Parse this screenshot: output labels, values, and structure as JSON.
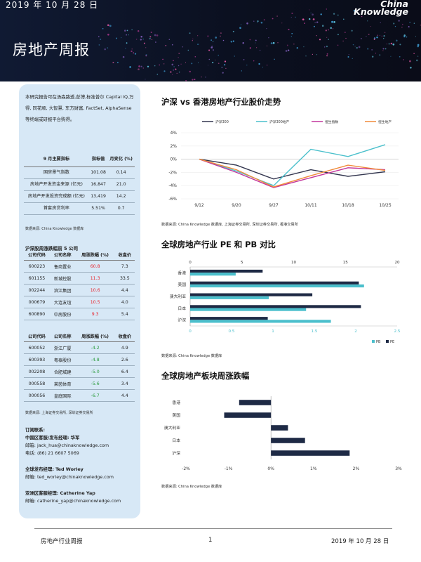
{
  "header": {
    "date": "2019 年 10 月 28 日",
    "logo_line1": "China",
    "logo_line2": "Knowledge",
    "title": "房地产周报"
  },
  "sidebar": {
    "intro": "本研究报告可在汤森路透,彭博,标准普尔 Capital IQ,万得, 同花顺, 大智慧, 东方财富, FactSet, AlphaSense 等终端或研报平台购得。",
    "indicators": {
      "headers": [
        "9 月主要指标",
        "指标值",
        "月变化 (%)"
      ],
      "rows": [
        {
          "name": "国房景气指数",
          "value": "101.08",
          "change": "0.14"
        },
        {
          "name": "房地产开发资金来源 (亿元)",
          "value": "16,847",
          "change": "21.0"
        },
        {
          "name": "房地产开发投资完成额 (亿元)",
          "value": "13,419",
          "change": "14.2"
        },
        {
          "name": "首套房贷利率",
          "value": "5.51%",
          "change": "0.7"
        }
      ],
      "source": "数据来源: China Knowledge 数据库"
    },
    "stocks_title": "沪深股周涨跌幅前 5 公司",
    "stock_headers": [
      "公司代码",
      "公司名称",
      "周涨跌幅 (%)",
      "收盘价"
    ],
    "gainers": [
      {
        "code": "600223",
        "name": "鲁商置业",
        "change": "60.8",
        "close": "7.3"
      },
      {
        "code": "601155",
        "name": "新城控股",
        "change": "11.3",
        "close": "33.5"
      },
      {
        "code": "002244",
        "name": "滨江集团",
        "change": "10.6",
        "close": "4.4"
      },
      {
        "code": "000679",
        "name": "大连友谊",
        "change": "10.5",
        "close": "4.0"
      },
      {
        "code": "600890",
        "name": "中房股份",
        "change": "9.3",
        "close": "5.4"
      }
    ],
    "losers": [
      {
        "code": "600052",
        "name": "浙江广厦",
        "change": "-4.2",
        "close": "4.9"
      },
      {
        "code": "600393",
        "name": "粤泰股份",
        "change": "-4.8",
        "close": "2.6"
      },
      {
        "code": "002208",
        "name": "合肥城建",
        "change": "-5.0",
        "close": "6.4"
      },
      {
        "code": "000558",
        "name": "莱茵体育",
        "change": "-5.6",
        "close": "3.4"
      },
      {
        "code": "000056",
        "name": "皇庭国际",
        "change": "-6.7",
        "close": "4.4"
      }
    ],
    "stocks_source": "数据来源: 上海证券交易所, 深圳证券交易所",
    "contacts": {
      "heading": "订阅联系:",
      "cn_title": "中国区客服/发布经理: 华军",
      "cn_email": "邮箱: jack_hua@chinaknowledge.com",
      "cn_phone": "电话: (86) 21 6607 5069",
      "global_title": "全球发布经理: Ted Worley",
      "global_email": "邮箱: ted_worley@chinaknowledge.com",
      "asia_title": "亚洲区客服经理: Catherine Yap",
      "asia_email": "邮箱: catherine_yap@chinaknowledge.com"
    }
  },
  "sections": {
    "chart1_title": "沪深 vs 香港房地产行业股价走势",
    "chart1_source": "数据来源: China Knowledge 数据库, 上海证券交易所, 深圳证券交易所, 香港交易所",
    "chart2_title": "全球房地产行业 PE 和 PB 对比",
    "chart2_source": "数据来源: China Knowledge 数据库",
    "chart3_title": "全球房地产板块周涨跌幅",
    "chart3_source": "数据来源: China Knowledge 数据库"
  },
  "footer": {
    "left": "房地产行业周报",
    "page": "1",
    "date": "2019 年 10 月 28 日"
  },
  "chart_data": [
    {
      "type": "line",
      "x": [
        "9/12",
        "9/20",
        "9/27",
        "10/11",
        "10/18",
        "10/25"
      ],
      "yticks": [
        "4%",
        "2%",
        "0%",
        "-2%",
        "-4%",
        "-6%"
      ],
      "ylim": [
        -6,
        4
      ],
      "series": [
        {
          "name": "沪深300",
          "color": "#33364f",
          "values": [
            0,
            -0.9,
            -3.0,
            -1.6,
            -2.6,
            -1.9
          ]
        },
        {
          "name": "沪深300地产",
          "color": "#4bc0cc",
          "values": [
            0,
            -1.8,
            -4.0,
            1.5,
            0.4,
            2.2
          ]
        },
        {
          "name": "恒生指数",
          "color": "#c2359c",
          "values": [
            0,
            -2.0,
            -4.3,
            -2.8,
            -1.3,
            -1.6
          ]
        },
        {
          "name": "恒生地产",
          "color": "#f08a3a",
          "values": [
            0,
            -1.6,
            -4.2,
            -2.5,
            -0.9,
            -1.7
          ]
        }
      ]
    },
    {
      "type": "bar",
      "orientation": "horizontal",
      "categories": [
        "香港",
        "美国",
        "澳大利亚",
        "日本",
        "沪深"
      ],
      "top_axis_ticks": [
        "0",
        "5",
        "10",
        "15",
        "20"
      ],
      "bottom_axis_ticks": [
        "0",
        "0.5",
        "1",
        "1.5",
        "2",
        "2.5"
      ],
      "series": [
        {
          "name": "PB",
          "color": "#4bbfcc",
          "axis": "bottom",
          "range": [
            0,
            2.5
          ],
          "values": [
            0.55,
            2.1,
            0.95,
            1.4,
            1.7
          ]
        },
        {
          "name": "PE",
          "color": "#1e2a45",
          "axis": "top",
          "range": [
            0,
            20
          ],
          "values": [
            7.0,
            16.3,
            11.8,
            16.5,
            7.5
          ]
        }
      ]
    },
    {
      "type": "bar",
      "orientation": "horizontal",
      "categories": [
        "香港",
        "美国",
        "澳大利亚",
        "日本",
        "沪深"
      ],
      "xticks": [
        "-2%",
        "-1%",
        "0%",
        "1%",
        "2%",
        "3%"
      ],
      "xlim": [
        -2,
        3
      ],
      "color": "#1e2a45",
      "values": [
        -0.75,
        -1.1,
        0.4,
        0.8,
        1.85
      ]
    }
  ]
}
